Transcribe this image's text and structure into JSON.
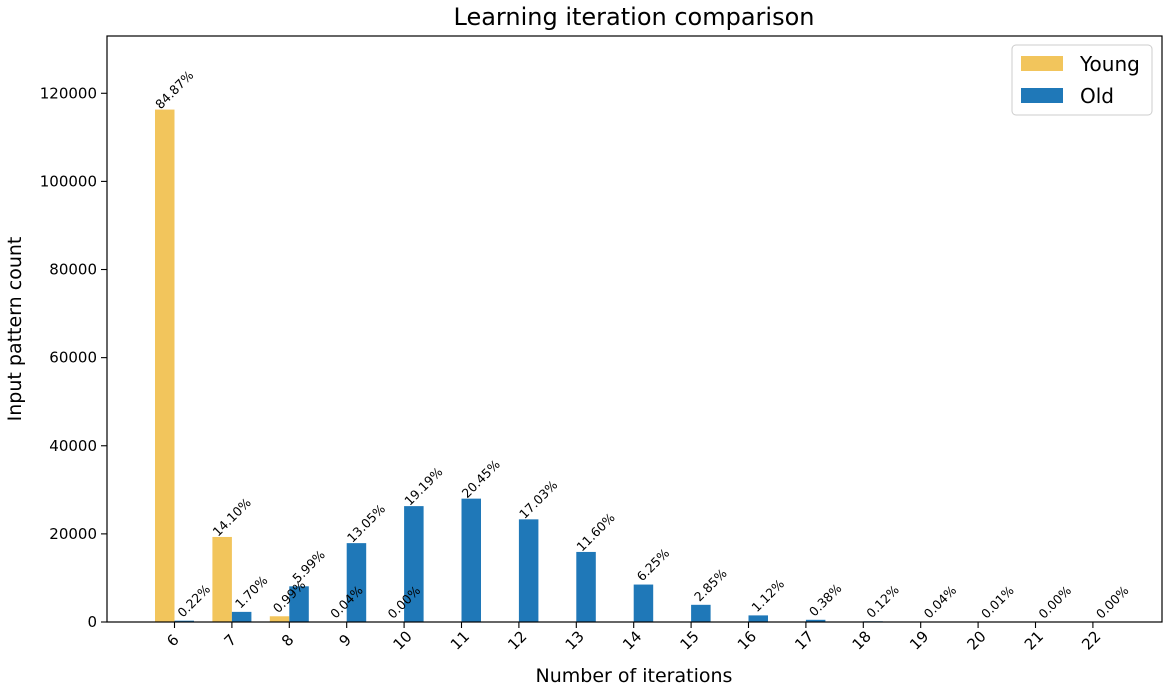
{
  "chart_data": {
    "type": "bar",
    "title": "Learning iteration comparison",
    "xlabel": "Number of iterations",
    "ylabel": "Input pattern count",
    "categories": [
      "6",
      "7",
      "8",
      "9",
      "10",
      "11",
      "12",
      "13",
      "14",
      "15",
      "16",
      "17",
      "18",
      "19",
      "20",
      "21",
      "22"
    ],
    "ylim": [
      0,
      133000
    ],
    "yticks": [
      0,
      20000,
      40000,
      60000,
      80000,
      100000,
      120000
    ],
    "legend_position": "top-right",
    "grid": false,
    "series": [
      {
        "name": "Young",
        "color": "#f2c55c",
        "values": [
          116300,
          19300,
          1300,
          50,
          0,
          0,
          0,
          0,
          0,
          0,
          0,
          0,
          0,
          0,
          0,
          0,
          0
        ],
        "labels": [
          "84.87%",
          "14.10%",
          "0.99%",
          "0.04%",
          "0.00%",
          "",
          "",
          "",
          "",
          "",
          "",
          "",
          "",
          "",
          "",
          "",
          ""
        ]
      },
      {
        "name": "Old",
        "color": "#1f78b8",
        "values": [
          300,
          2300,
          8100,
          17900,
          26300,
          28000,
          23300,
          15900,
          8500,
          3900,
          1500,
          500,
          160,
          50,
          10,
          0,
          0
        ],
        "labels": [
          "0.22%",
          "1.70%",
          "5.99%",
          "13.05%",
          "19.19%",
          "20.45%",
          "17.03%",
          "11.60%",
          "6.25%",
          "2.85%",
          "1.12%",
          "0.38%",
          "0.12%",
          "0.04%",
          "0.01%",
          "0.00%",
          "0.00%"
        ]
      }
    ]
  }
}
